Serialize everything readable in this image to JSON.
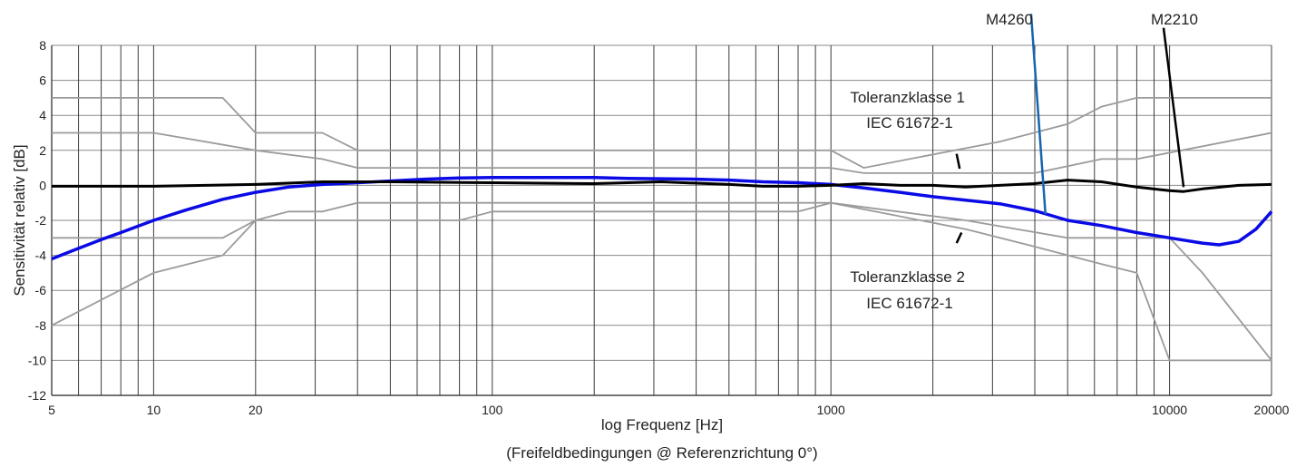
{
  "chart_data": {
    "type": "line",
    "xlabel": "log Frequenz [Hz]",
    "xlabel_sub": "(Freifeldbedingungen @ Referenzrichtung 0°)",
    "ylabel": "Sensitivität relativ [dB]",
    "x_scale": "log",
    "xlim": [
      5,
      20000
    ],
    "ylim": [
      -12,
      8
    ],
    "grid": true,
    "x_ticks": [
      5,
      10,
      20,
      100,
      1000,
      10000,
      20000
    ],
    "x_tick_labels": [
      "5",
      "10",
      "20",
      "100",
      "1000",
      "10000",
      "20000"
    ],
    "y_ticks": [
      -12,
      -10,
      -8,
      -6,
      -4,
      -2,
      0,
      2,
      4,
      6,
      8
    ],
    "y_tick_labels": [
      "-12",
      "-10",
      "-8",
      "-6",
      "-4",
      "-2",
      "0",
      "2",
      "4",
      "6",
      "8"
    ],
    "colors": {
      "M4260": "#0a0ae6",
      "M2210": "#000000",
      "tolerance": "#9b9b9b",
      "leader_M4260": "#1565b0"
    },
    "series": [
      {
        "name": "M4260",
        "x": [
          5,
          6,
          7,
          8,
          10,
          12.5,
          16,
          20,
          25,
          31.5,
          40,
          50,
          63,
          80,
          100,
          125,
          160,
          200,
          250,
          315,
          400,
          500,
          630,
          800,
          1000,
          1250,
          1600,
          2000,
          2500,
          3150,
          4000,
          5000,
          6300,
          8000,
          10000,
          12500,
          14000,
          16000,
          18000,
          20000
        ],
        "y": [
          -4.2,
          -3.6,
          -3.1,
          -2.7,
          -2.0,
          -1.4,
          -0.8,
          -0.4,
          -0.1,
          0.05,
          0.15,
          0.25,
          0.35,
          0.42,
          0.45,
          0.45,
          0.45,
          0.45,
          0.4,
          0.38,
          0.35,
          0.3,
          0.2,
          0.15,
          0.05,
          -0.15,
          -0.4,
          -0.65,
          -0.85,
          -1.05,
          -1.45,
          -2.0,
          -2.3,
          -2.7,
          -3.0,
          -3.3,
          -3.4,
          -3.2,
          -2.5,
          -1.5
        ]
      },
      {
        "name": "M2210",
        "x": [
          5,
          10,
          20,
          31.5,
          50,
          100,
          200,
          315,
          500,
          630,
          800,
          1000,
          1250,
          1600,
          2000,
          2500,
          3150,
          4000,
          5000,
          6300,
          8000,
          10000,
          11000,
          12500,
          16000,
          20000
        ],
        "y": [
          -0.05,
          -0.05,
          0.05,
          0.2,
          0.2,
          0.15,
          0.1,
          0.2,
          0.05,
          -0.05,
          -0.05,
          0.0,
          0.1,
          0.0,
          0.0,
          -0.1,
          0.0,
          0.1,
          0.3,
          0.2,
          -0.1,
          -0.3,
          -0.35,
          -0.2,
          0.0,
          0.05
        ]
      }
    ],
    "tolerance_limits": [
      {
        "x": [
          5,
          16,
          20,
          31.5,
          40,
          1000,
          1250,
          3150,
          5000,
          6300,
          8000,
          20000
        ],
        "y": [
          5,
          5,
          3,
          3,
          2,
          2,
          1,
          2.5,
          3.5,
          4.5,
          5,
          5
        ]
      },
      {
        "x": [
          5,
          10,
          20,
          31.5,
          40,
          1000,
          1250,
          4000,
          6300,
          8000,
          20000
        ],
        "y": [
          3,
          3,
          2,
          1.5,
          1,
          1,
          0.7,
          0.7,
          1.5,
          1.5,
          3
        ]
      },
      {
        "x": [
          5,
          16,
          20,
          25,
          31.5,
          40,
          1000,
          2500,
          5000,
          8000,
          10000,
          12500,
          20000
        ],
        "y": [
          -3,
          -3,
          -2,
          -1.5,
          -1.5,
          -1,
          -1,
          -2,
          -3,
          -3,
          -3,
          -5,
          -10
        ]
      },
      {
        "x": [
          5,
          10,
          16,
          20,
          25,
          31.5,
          40,
          80,
          100,
          800,
          1000,
          2500,
          4000,
          6300,
          8000,
          10000,
          20000
        ],
        "y": [
          -8,
          -5,
          -4,
          -2,
          -2,
          -2,
          -2,
          -2,
          -1.5,
          -1.5,
          -1,
          -2.5,
          -3.5,
          -4.5,
          -5,
          -10,
          -10
        ]
      }
    ],
    "annotations": [
      {
        "text": "M4260",
        "leader_from": [
          3900,
          9.8
        ],
        "leader_to": [
          4300,
          -1.65
        ],
        "color": "leader_M4260"
      },
      {
        "text": "M2210",
        "leader_from": [
          9600,
          9.0
        ],
        "leader_to": [
          11000,
          -0.1
        ],
        "color": "M2210"
      },
      {
        "text": "Toleranzklasse 1\nIEC 61672-1",
        "leader_from": [
          2350,
          1.8
        ],
        "leader_to": [
          2400,
          0.95
        ],
        "color": "M2210"
      },
      {
        "text": "Toleranzklasse 2\nIEC 61672-1",
        "leader_from": [
          2350,
          -3.3
        ],
        "leader_to": [
          2430,
          -2.7
        ],
        "color": "M2210"
      }
    ]
  }
}
